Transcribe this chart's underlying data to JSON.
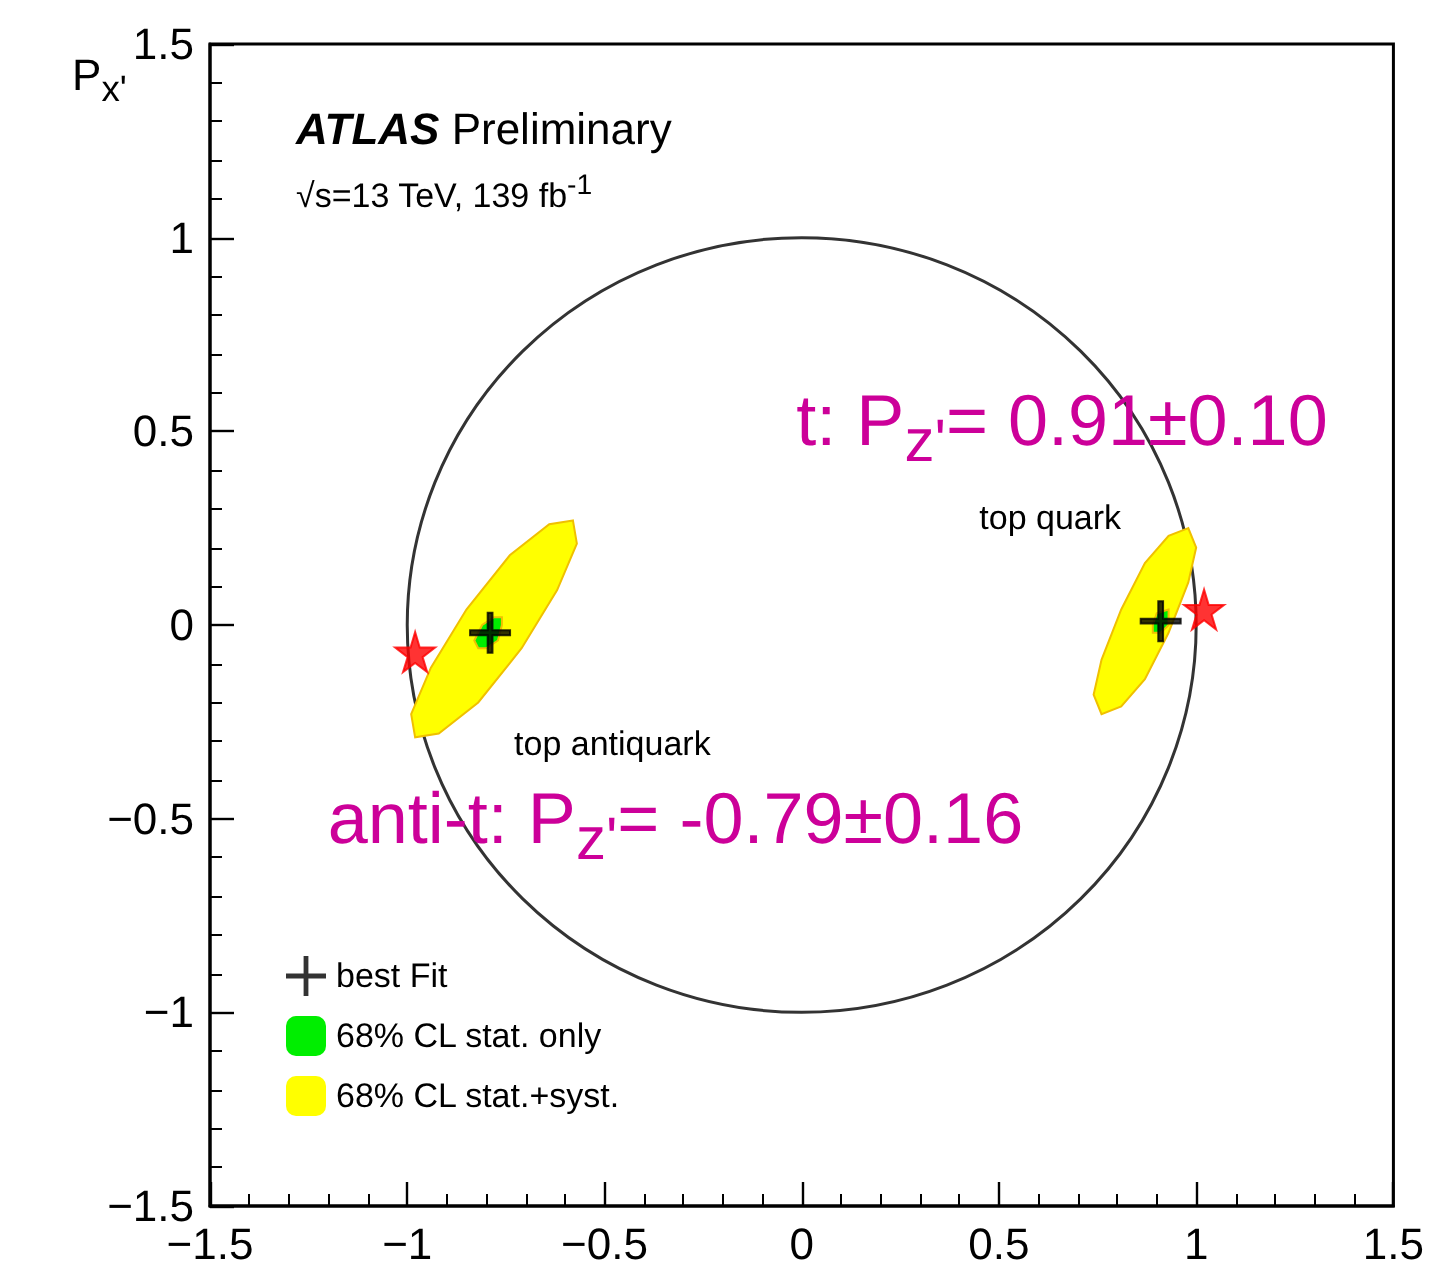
{
  "chart_data": {
    "type": "scatter",
    "ylabel": "P$_{x'}$",
    "xlim": [
      -1.5,
      1.5
    ],
    "ylim": [
      -1.5,
      1.5
    ],
    "xticks": [
      -1.5,
      -1,
      -0.5,
      0,
      0.5,
      1,
      1.5
    ],
    "yticks": [
      -1.5,
      -1,
      -0.5,
      0,
      0.5,
      1,
      1.5
    ],
    "grid": false,
    "legend": "bottom left",
    "series": [
      {
        "name": "best Fit",
        "color": "#000000",
        "marker": "cross",
        "x": [
          -0.79,
          0.91
        ],
        "values": [
          -0.02,
          0.01
        ]
      },
      {
        "type": "area",
        "name": "68% CL stat. only",
        "color": "#00ee00",
        "x": [
          -0.76,
          -0.78,
          -0.81,
          -0.83,
          -0.82,
          -0.8,
          -0.77,
          -0.76
        ],
        "values": [
          0.02,
          0.02,
          0,
          -0.04,
          -0.06,
          -0.06,
          -0.04,
          0
        ]
      },
      {
        "type": "area",
        "color": "#00ee00",
        "x": [
          0.93,
          0.9,
          0.89,
          0.89,
          0.91,
          0.93
        ],
        "values": [
          0.04,
          0.03,
          0,
          -0.02,
          -0.02,
          0
        ]
      },
      {
        "type": "area",
        "name": "68% CL stat.+syst.",
        "color": "#ffff00",
        "x": [
          -0.58,
          -0.64,
          -0.74,
          -0.85,
          -0.94,
          -0.99,
          -0.98,
          -0.92,
          -0.82,
          -0.71,
          -0.62,
          -0.57
        ],
        "values": [
          0.27,
          0.26,
          0.18,
          0.04,
          -0.11,
          -0.23,
          -0.29,
          -0.28,
          -0.2,
          -0.06,
          0.09,
          0.21
        ]
      },
      {
        "type": "area",
        "color": "#ffff00",
        "x": [
          0.98,
          0.93,
          0.87,
          0.81,
          0.76,
          0.74,
          0.76,
          0.81,
          0.87,
          0.93,
          0.98,
          1.0
        ],
        "values": [
          0.25,
          0.23,
          0.16,
          0.04,
          -0.09,
          -0.18,
          -0.23,
          -0.21,
          -0.14,
          -0.02,
          0.11,
          0.2
        ]
      },
      {
        "color": "#ff0000",
        "marker": "star",
        "x": [
          -0.98,
          1.02
        ],
        "values": [
          -0.07,
          0.04
        ]
      }
    ],
    "annotations": [
      "ATLAS Preliminary",
      "√s=13 TeV, 139 fb$^{-1}$",
      "top quark",
      "top antiquark",
      "t: P$_{z'}$= 0.91±0.10",
      "anti-t: P$_{z'}$= -0.79±0.16"
    ]
  }
}
